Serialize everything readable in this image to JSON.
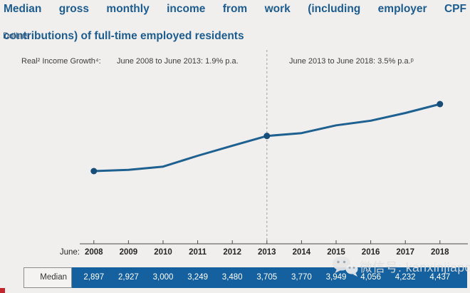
{
  "title": {
    "line1": "Median gross monthly income from work (including employer CPF",
    "line2": "contributions) of full-time employed residents",
    "unit": "Dollars"
  },
  "growth_note": {
    "label": "Real² Income Growth⁴:",
    "period1": "June 2008 to June 2013: 1.9% p.a.",
    "period2": "June 2013 to June 2018: 3.5% p.a.ᵖ"
  },
  "axis": {
    "prefix": "June:"
  },
  "table": {
    "row_label": "Median",
    "values_formatted": [
      "2,897",
      "2,927",
      "3,000",
      "3,249",
      "3,480",
      "3,705",
      "3,770",
      "3,949",
      "4,056",
      "4,232",
      "4,437"
    ]
  },
  "watermark": {
    "icon": "wechat-icon",
    "text": "微信号: kanxinjiapo"
  },
  "colors": {
    "title_blue": "#1d5c8e",
    "line": "#1e608f",
    "dot": "#174d79",
    "bar_blue": "#15609e",
    "background": "#f0efee",
    "axis": "#4a4a4a",
    "reference_line": "#9aa0a6"
  },
  "chart_data": {
    "type": "line",
    "x": [
      2008,
      2009,
      2010,
      2011,
      2012,
      2013,
      2014,
      2015,
      2016,
      2017,
      2018
    ],
    "series": [
      {
        "name": "Median",
        "values": [
          2897,
          2927,
          3000,
          3249,
          3480,
          3705,
          3770,
          3949,
          4056,
          4232,
          4437
        ]
      }
    ],
    "title": "Median gross monthly income from work (including employer CPF contributions) of full-time employed residents",
    "ylabel": "Dollars",
    "xlabel": "June",
    "annotations": [
      "Real² Income Growth⁴: June 2008 to June 2013: 1.9% p.a.",
      "June 2013 to June 2018: 3.5% p.a.ᵖ"
    ],
    "markers_at": [
      2008,
      2013,
      2018
    ],
    "reference_line_x": 2013,
    "grid": false,
    "legend": "none"
  }
}
